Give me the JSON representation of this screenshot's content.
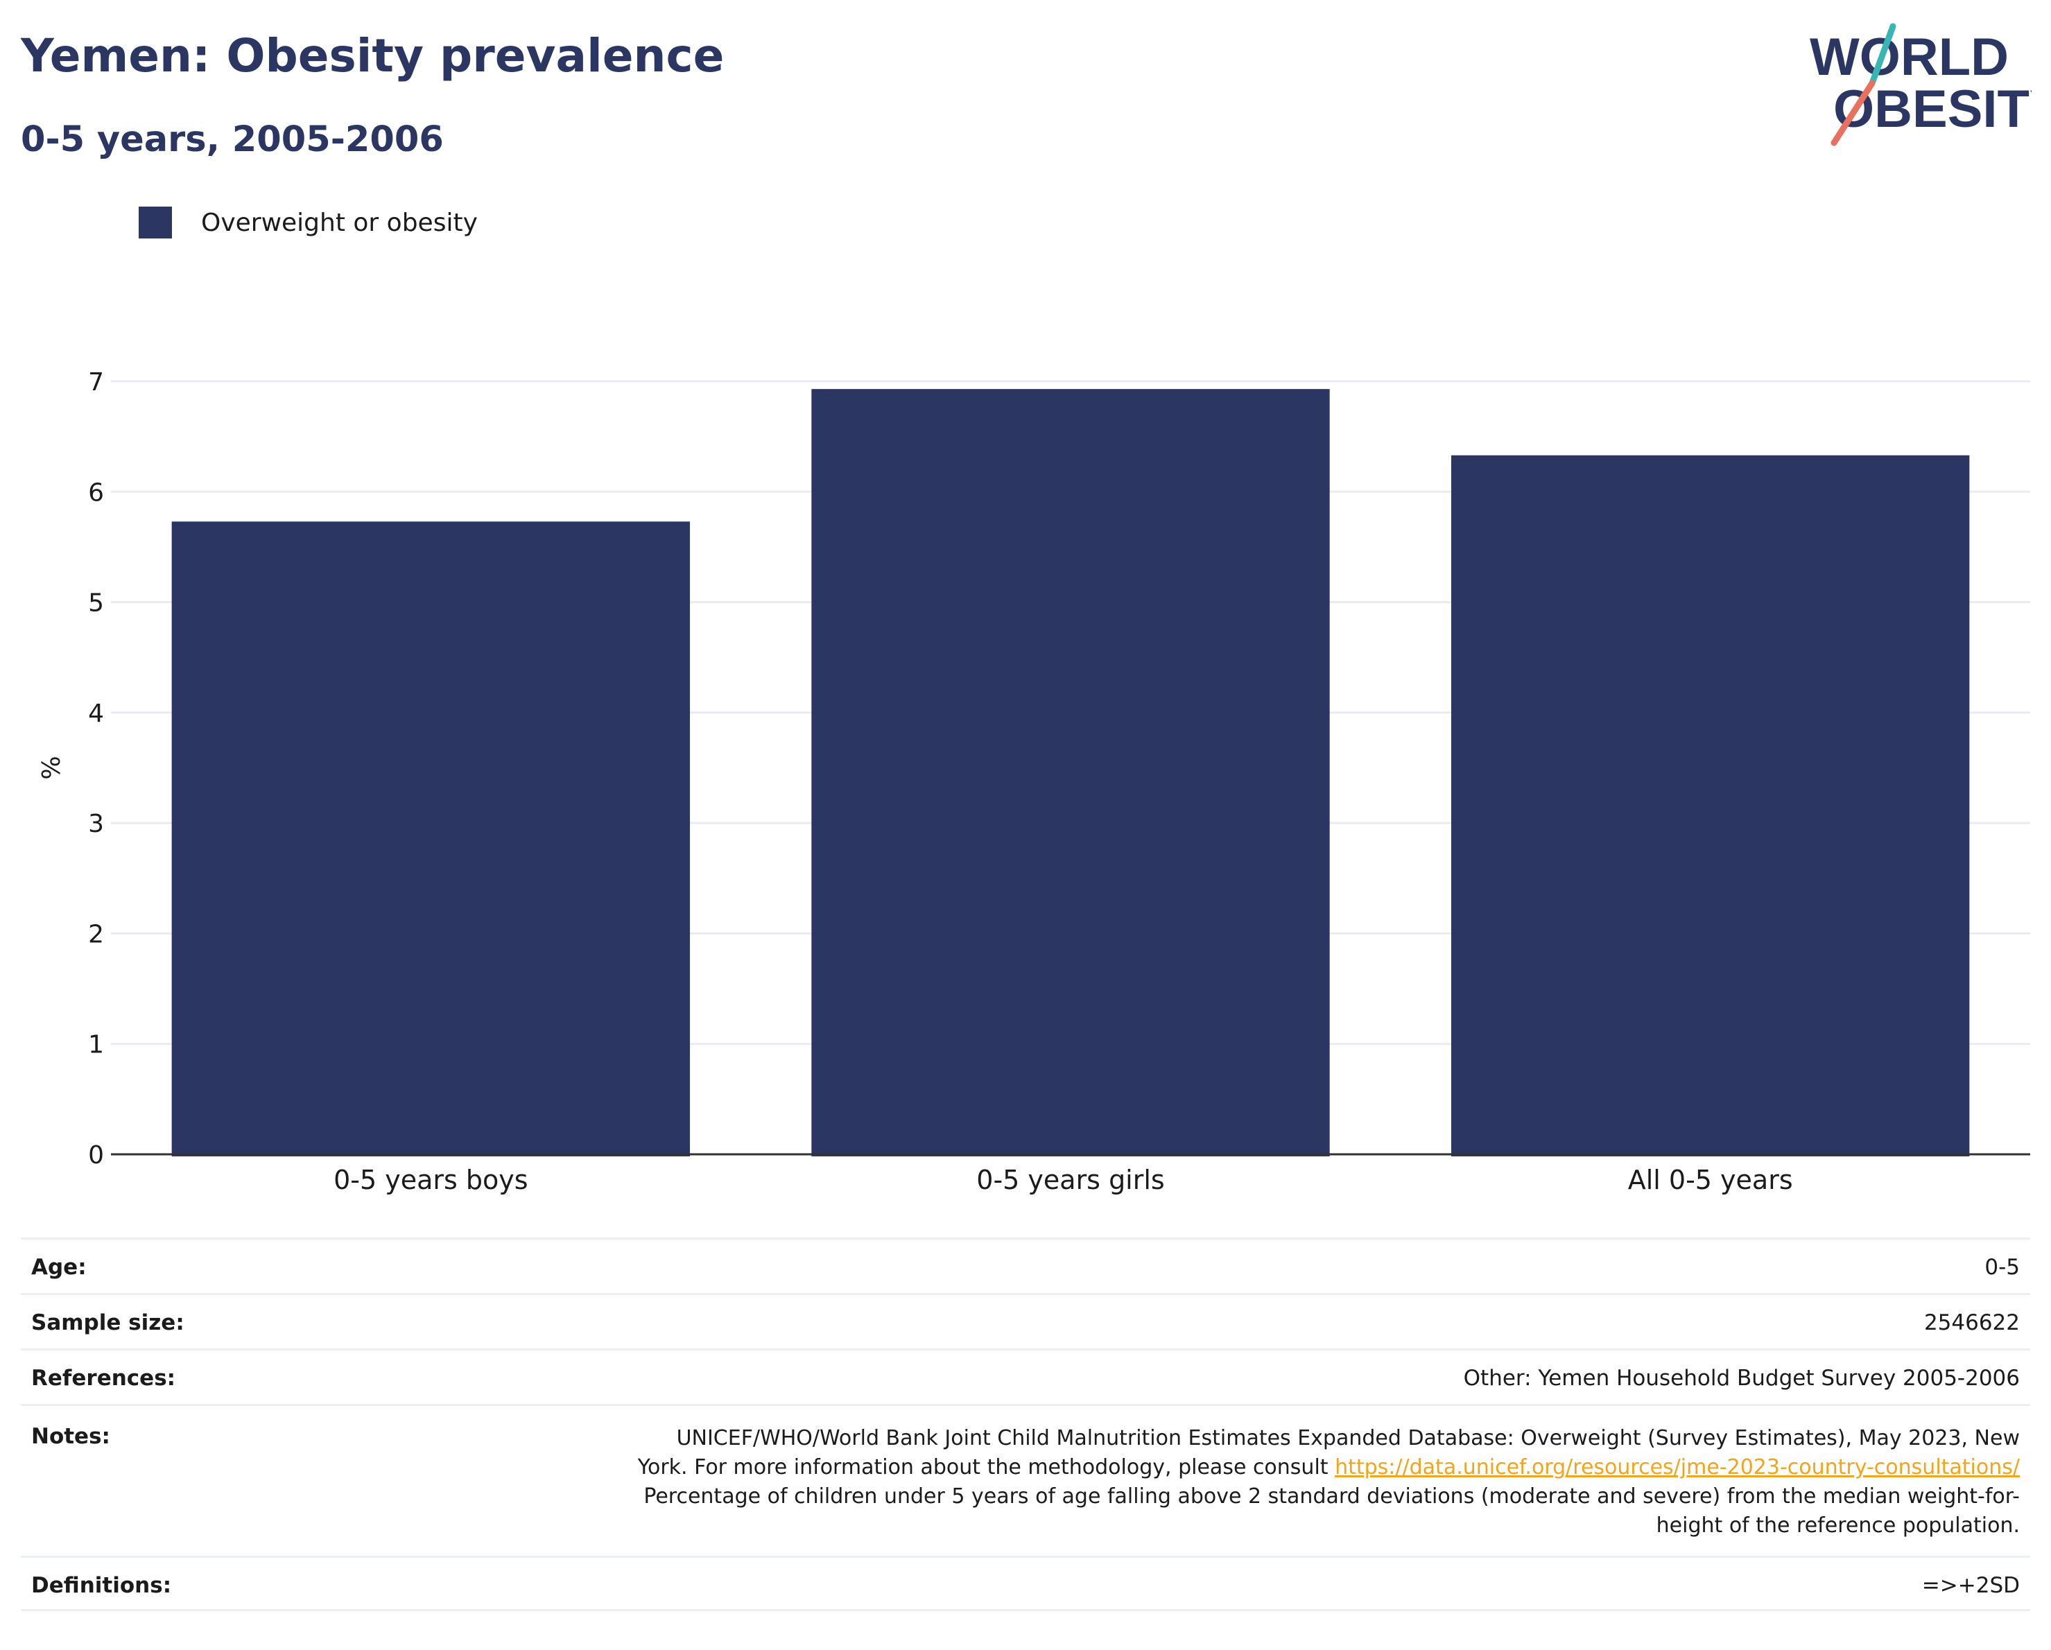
{
  "header": {
    "title": "Yemen: Obesity prevalence",
    "subtitle": "0-5 years, 2005-2006",
    "logo_line1": "WORLD",
    "logo_line2": "OBESITY"
  },
  "legend": {
    "label": "Overweight or obesity"
  },
  "colors": {
    "bar": "#2b3762",
    "title": "#2b3762",
    "link": "#f0a51b",
    "logo_teal": "#3ab5b5",
    "logo_coral": "#e8705e"
  },
  "chart_data": {
    "type": "bar",
    "categories": [
      "0-5 years boys",
      "0-5 years girls",
      "All 0-5 years"
    ],
    "series": [
      {
        "name": "Overweight or obesity",
        "values": [
          5.73,
          6.93,
          6.33
        ]
      }
    ],
    "ylabel": "%",
    "ylim": [
      0,
      7
    ],
    "yticks": [
      0,
      1,
      2,
      3,
      4,
      5,
      6,
      7
    ],
    "grid": true,
    "legend_position": "top-left"
  },
  "info": {
    "age_label": "Age:",
    "age_value": "0-5",
    "sample_label": "Sample size:",
    "sample_value": "2546622",
    "refs_label": "References:",
    "refs_value": "Other: Yemen Household Budget Survey 2005-2006",
    "notes_label": "Notes:",
    "notes_line1": "UNICEF/WHO/World Bank Joint Child Malnutrition Estimates Expanded Database: Overweight (Survey Estimates), May 2023, New",
    "notes_line2_prefix": "York. For more information about the methodology, please consult ",
    "notes_link": "https://data.unicef.org/resources/jme-2023-country-consultations/",
    "notes_line3": "Percentage of children under 5 years of age falling above 2 standard deviations (moderate and severe) from the median weight-for-",
    "notes_line4": "height of the reference population.",
    "defs_label": "Definitions:",
    "defs_value": "=>+2SD"
  }
}
